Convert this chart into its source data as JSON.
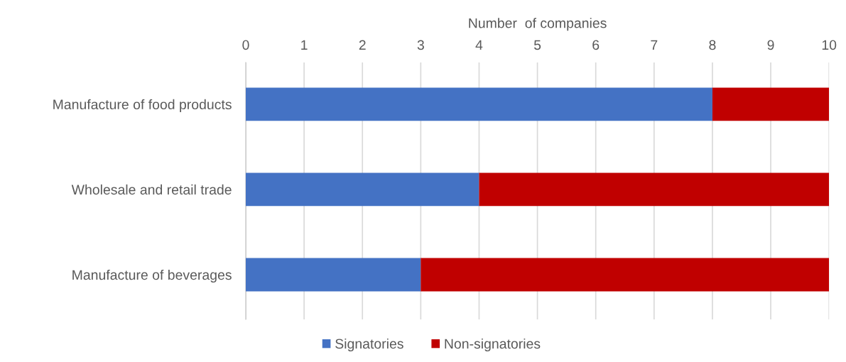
{
  "chart_data": {
    "type": "bar",
    "orientation": "horizontal",
    "stacked": true,
    "xlabel": "Number  of companies",
    "categories": [
      "Manufacture of food products",
      "Wholesale and retail trade",
      "Manufacture of beverages"
    ],
    "series": [
      {
        "name": "Signatories",
        "color": "#4472c4",
        "values": [
          8,
          4,
          3
        ]
      },
      {
        "name": "Non-signatories",
        "color": "#c00000",
        "values": [
          2,
          6,
          7
        ]
      }
    ],
    "xlim": [
      0,
      10
    ],
    "xticks": [
      0,
      1,
      2,
      3,
      4,
      5,
      6,
      7,
      8,
      9,
      10
    ],
    "grid": "x",
    "legend": "bottom"
  }
}
